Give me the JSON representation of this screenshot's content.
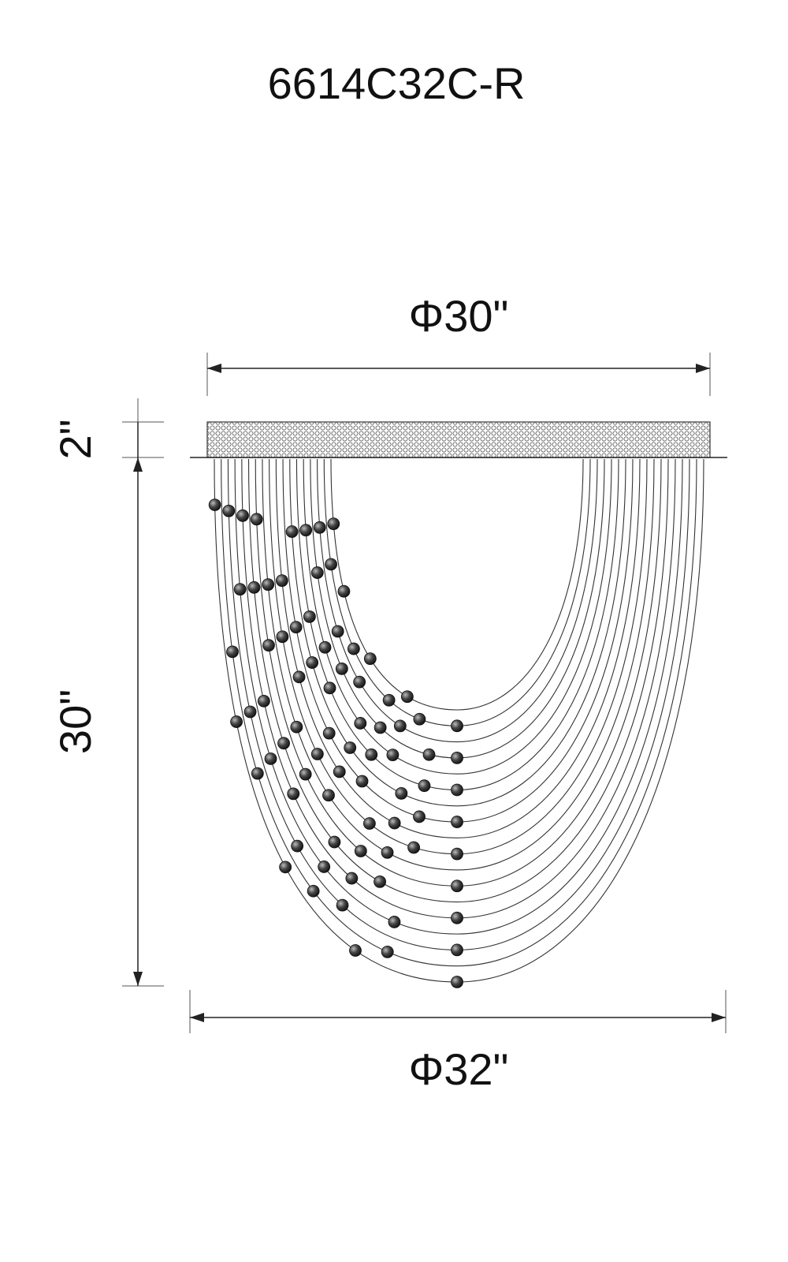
{
  "header": {
    "title": "6614C32C-R"
  },
  "dimensions": {
    "top_diameter": "Φ30\"",
    "canopy_height": "2\"",
    "body_height": "30\"",
    "bottom_diameter": "Φ32\""
  }
}
